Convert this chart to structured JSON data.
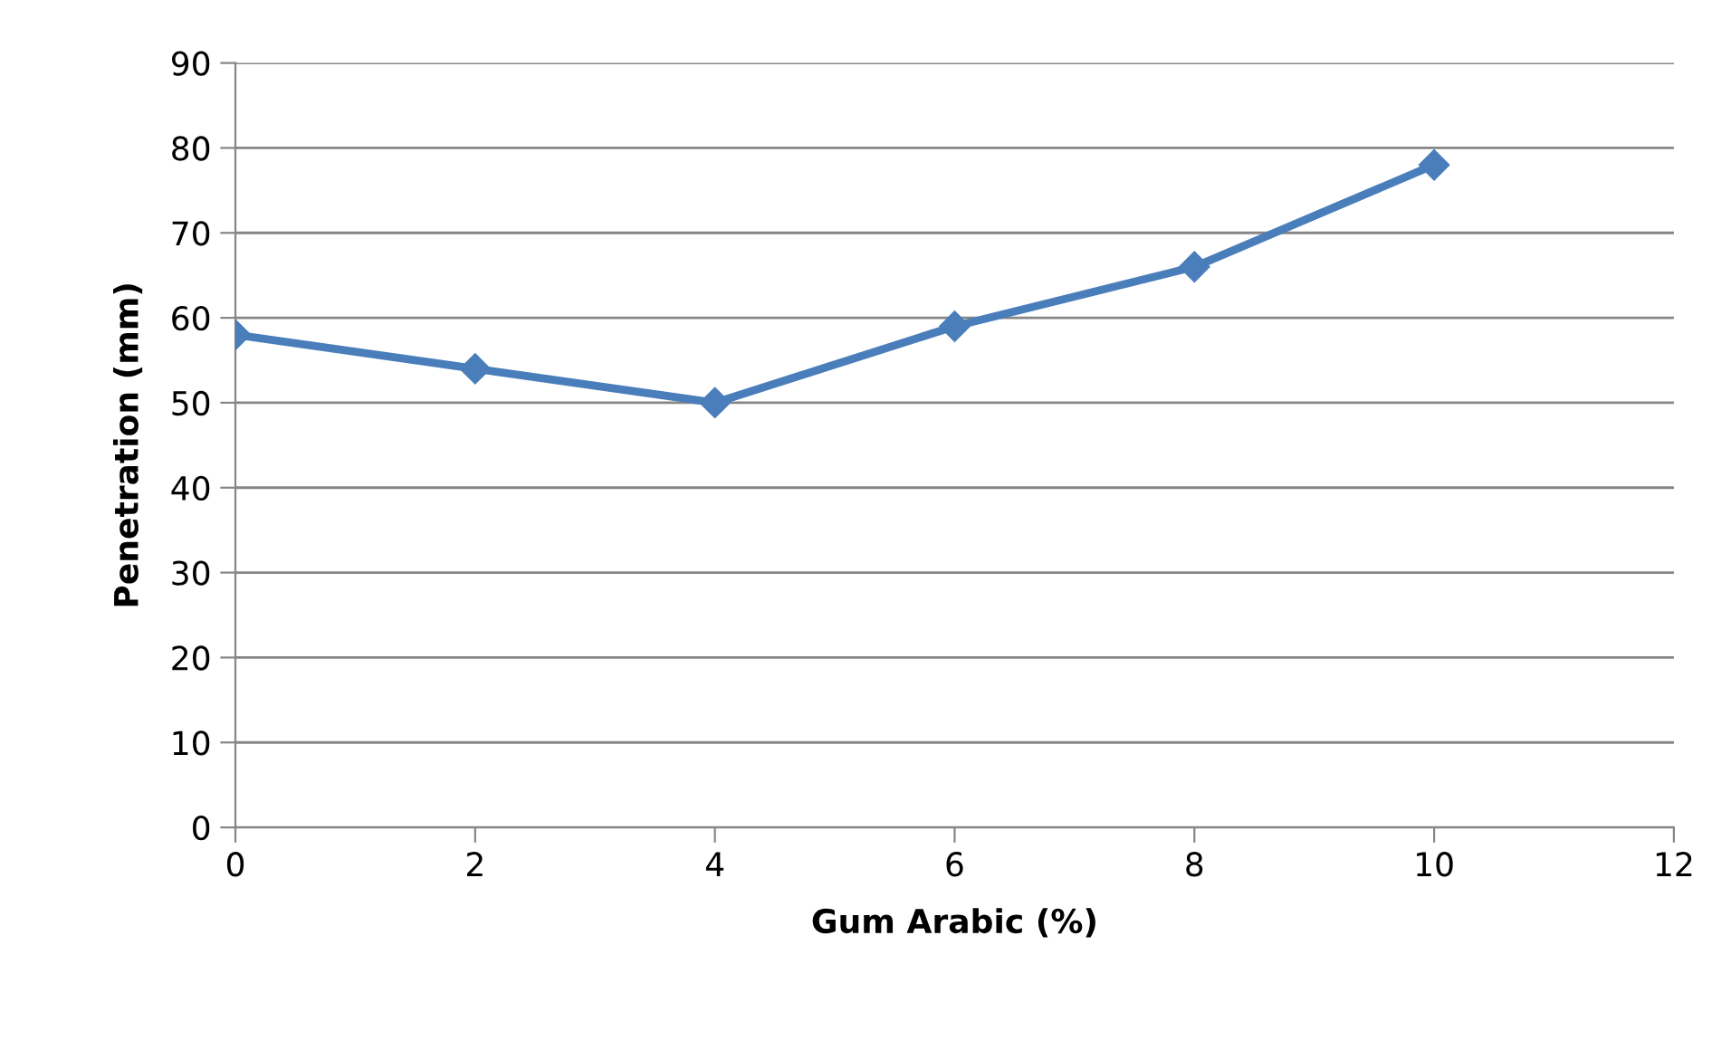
{
  "chart_data": {
    "type": "line",
    "xlabel": "Gum Arabic (%)",
    "ylabel": "Penetration (mm)",
    "x": [
      0,
      2,
      4,
      6,
      8,
      10
    ],
    "series": [
      {
        "color": "#4a7ebb",
        "values": [
          58,
          54,
          50,
          59,
          66,
          78
        ]
      }
    ],
    "xlim": [
      0,
      12
    ],
    "xticks": [
      0,
      2,
      4,
      6,
      8,
      10,
      12
    ],
    "ylim": [
      0,
      90
    ],
    "yticks": [
      0,
      10,
      20,
      30,
      40,
      50,
      60,
      70,
      80,
      90
    ],
    "grid": "y",
    "marker": "diamond",
    "line_style": "solid",
    "legend": false
  }
}
